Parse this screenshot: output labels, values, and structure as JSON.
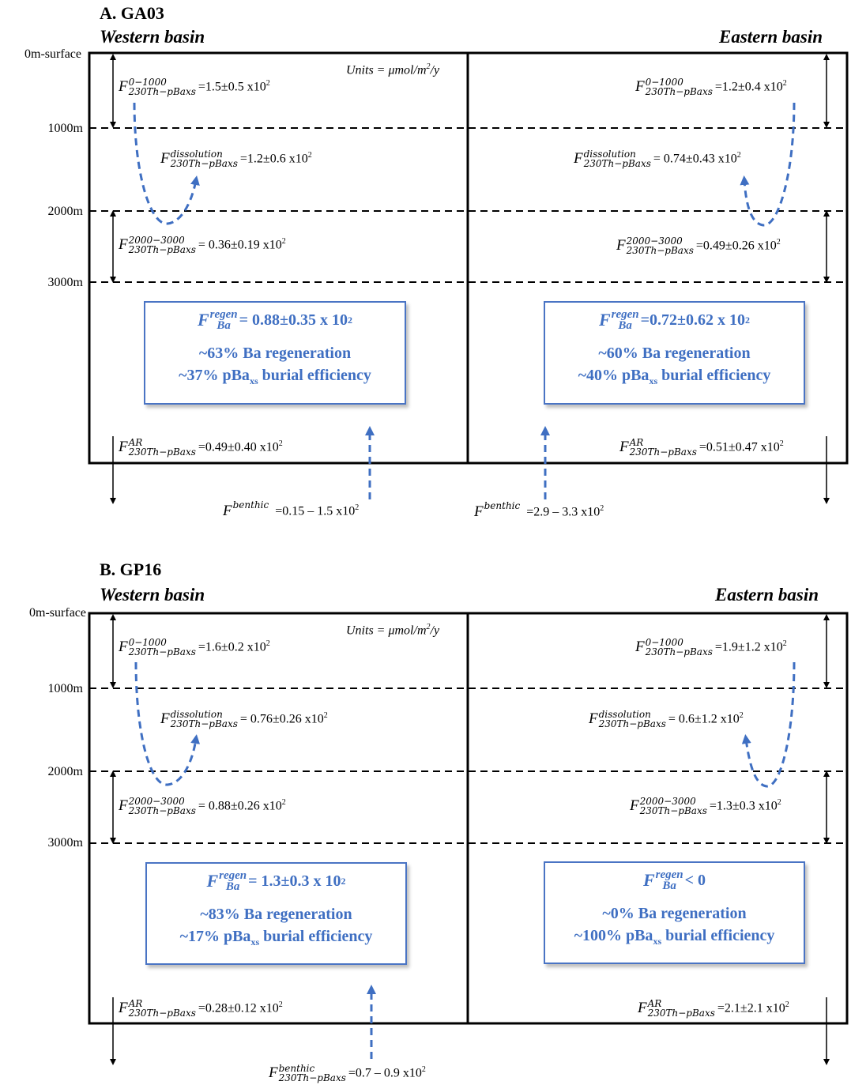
{
  "panels": [
    {
      "title": "A. GA03",
      "west_label": "Western basin",
      "east_label": "Eastern basin",
      "units": "Units = μmol/m",
      "units_exp": "2",
      "units_tail": "/y",
      "depths": [
        "0m-surface",
        "1000m",
        "2000m",
        "3000m"
      ],
      "west": {
        "f01000_sup": "0−1000",
        "f01000_sub": "230Th−pBaxs",
        "f01000_val": "=1.5±0.5 x10",
        "f01000_exp": "2",
        "fdiss_sup": "dissolution",
        "fdiss_sub": "230Th−pBaxs",
        "fdiss_val": "=1.2±0.6 x10",
        "fdiss_exp": "2",
        "f2000_sup": "2000−3000",
        "f2000_sub": "230Th−pBaxs",
        "f2000_val": "= 0.36±0.19 x10",
        "f2000_exp": "2",
        "far_sup": "AR",
        "far_sub": "230Th−pBaxs",
        "far_val": "=0.49±0.40 x10",
        "far_exp": "2",
        "regen_sup": "regen",
        "regen_sub": "Ba",
        "regen_val": "= 0.88±0.35 x 10",
        "regen_exp": "2",
        "line1": "~63% Ba regeneration",
        "line2_a": "~37% pBa",
        "line2_sub": "xs",
        "line2_b": " burial efficiency",
        "benthic_sup": "benthic",
        "benthic_sub": "",
        "benthic_val": "=0.15 – 1.5 x10",
        "benthic_exp": "2"
      },
      "east": {
        "f01000_sup": "0−1000",
        "f01000_sub": "230Th−pBaxs",
        "f01000_val": "=1.2±0.4 x10",
        "f01000_exp": "2",
        "fdiss_sup": "dissolution",
        "fdiss_sub": "230Th−pBaxs",
        "fdiss_val": "= 0.74±0.43 x10",
        "fdiss_exp": "2",
        "f2000_sup": "2000−3000",
        "f2000_sub": "230Th−pBaxs",
        "f2000_val": "=0.49±0.26 x10",
        "f2000_exp": "2",
        "far_sup": "AR",
        "far_sub": "230Th−pBaxs",
        "far_val": "=0.51±0.47 x10",
        "far_exp": "2",
        "regen_sup": "regen",
        "regen_sub": "Ba",
        "regen_val": "=0.72±0.62 x 10",
        "regen_exp": "2",
        "line1": "~60% Ba regeneration",
        "line2_a": "~40% pBa",
        "line2_sub": "xs",
        "line2_b": " burial efficiency",
        "benthic_sup": "benthic",
        "benthic_sub": "",
        "benthic_val": "=2.9 – 3.3 x10",
        "benthic_exp": "2"
      }
    },
    {
      "title": "B. GP16",
      "west_label": "Western basin",
      "east_label": "Eastern basin",
      "units": "Units = μmol/m",
      "units_exp": "2",
      "units_tail": "/y",
      "depths": [
        "0m-surface",
        "1000m",
        "2000m",
        "3000m"
      ],
      "west": {
        "f01000_sup": "0−1000",
        "f01000_sub": "230Th−pBaxs",
        "f01000_val": "=1.6±0.2 x10",
        "f01000_exp": "2",
        "fdiss_sup": "dissolution",
        "fdiss_sub": "230Th−pBaxs",
        "fdiss_val": "= 0.76±0.26 x10",
        "fdiss_exp": "2",
        "f2000_sup": "2000−3000",
        "f2000_sub": "230Th−pBaxs",
        "f2000_val": "= 0.88±0.26 x10",
        "f2000_exp": "2",
        "far_sup": "AR",
        "far_sub": "230Th−pBaxs",
        "far_val": "=0.28±0.12 x10",
        "far_exp": "2",
        "regen_sup": "regen",
        "regen_sub": "Ba",
        "regen_val": "= 1.3±0.3 x 10",
        "regen_exp": "2",
        "line1": "~83% Ba regeneration",
        "line2_a": "~17% pBa",
        "line2_sub": "xs",
        "line2_b": " burial efficiency",
        "benthic_sup": "benthic",
        "benthic_sub": "230Th−pBaxs",
        "benthic_val": "=0.7 – 0.9 x10",
        "benthic_exp": "2"
      },
      "east": {
        "f01000_sup": "0−1000",
        "f01000_sub": "230Th−pBaxs",
        "f01000_val": "=1.9±1.2 x10",
        "f01000_exp": "2",
        "fdiss_sup": "dissolution",
        "fdiss_sub": "230Th−pBaxs",
        "fdiss_val": "= 0.6±1.2 x10",
        "fdiss_exp": "2",
        "f2000_sup": "2000−3000",
        "f2000_sub": "230Th−pBaxs",
        "f2000_val": "=1.3±0.3 x10",
        "f2000_exp": "2",
        "far_sup": "AR",
        "far_sub": "230Th−pBaxs",
        "far_val": "=2.1±2.1 x10",
        "far_exp": "2",
        "regen_sup": "regen",
        "regen_sub": "Ba",
        "regen_val": "< 0",
        "regen_exp": "",
        "line1": "~0% Ba regeneration",
        "line2_a": "~100% pBa",
        "line2_sub": "xs",
        "line2_b": " burial efficiency"
      }
    }
  ],
  "colors": {
    "accent_blue": "#3f6fc2",
    "line": "#000000"
  }
}
